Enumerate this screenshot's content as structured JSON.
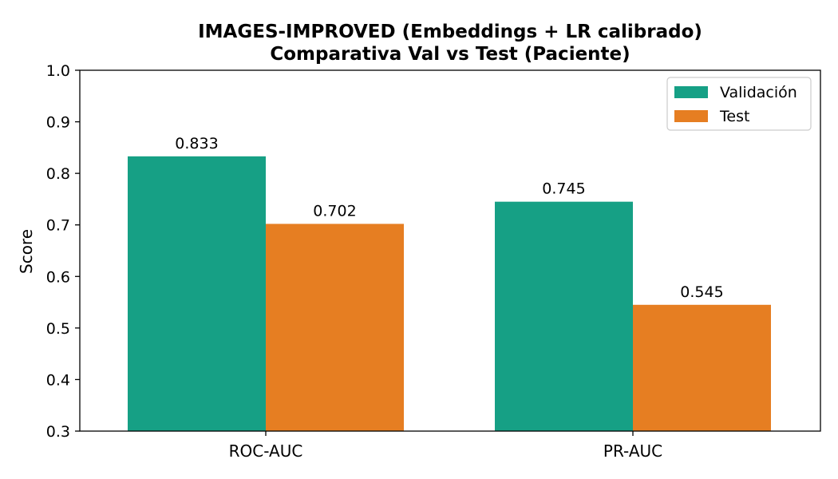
{
  "chart_data": {
    "type": "bar",
    "title": "IMAGES-IMPROVED (Embeddings + LR calibrado)",
    "subtitle": "Comparativa Val vs Test (Paciente)",
    "xlabel": "",
    "ylabel": "Score",
    "ylim": [
      0.3,
      1.0
    ],
    "yticks": [
      "0.3",
      "0.4",
      "0.5",
      "0.6",
      "0.7",
      "0.8",
      "0.9",
      "1.0"
    ],
    "categories": [
      "ROC-AUC",
      "PR-AUC"
    ],
    "series": [
      {
        "name": "Validación",
        "color": "#16a085",
        "values": [
          0.833,
          0.745
        ],
        "labels": [
          "0.833",
          "0.745"
        ]
      },
      {
        "name": "Test",
        "color": "#e67e22",
        "values": [
          0.702,
          0.545
        ],
        "labels": [
          "0.702",
          "0.545"
        ]
      }
    ],
    "legend_position": "top-right",
    "grid": false
  }
}
